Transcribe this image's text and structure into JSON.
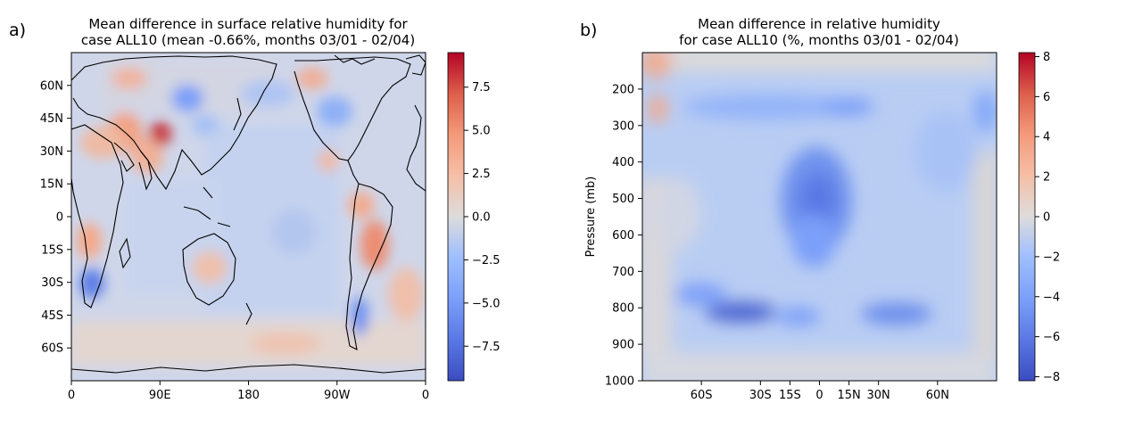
{
  "chart_data": [
    {
      "type": "heatmap",
      "panel_label": "a)",
      "title": [
        "Mean difference in surface relative humidity for",
        "case ALL10 (mean -0.66%, months 03/01 - 02/04)"
      ],
      "xlabel": "",
      "ylabel": "",
      "x_ticks": [
        "0",
        "90E",
        "180",
        "90W",
        "0"
      ],
      "y_ticks": [
        "60N",
        "45N",
        "30N",
        "15N",
        "0",
        "15S",
        "30S",
        "45S",
        "60S"
      ],
      "y_tick_values": [
        60,
        45,
        30,
        15,
        0,
        -15,
        -30,
        -45,
        -60
      ],
      "xlim": [
        0,
        360
      ],
      "ylim": [
        -75,
        75
      ],
      "colormap": "coolwarm",
      "coastlines": true,
      "colorbar": {
        "range": [
          -9.5,
          9.5
        ],
        "tick_values": [
          7.5,
          5.0,
          2.5,
          0.0,
          -2.5,
          -5.0,
          -7.5
        ],
        "tick_labels": [
          "7.5",
          "5.0",
          "2.5",
          "0.0",
          "−2.5",
          "−5.0",
          "−7.5"
        ]
      },
      "features": [
        {
          "lon": 50,
          "lat": 30,
          "value": 9.0
        },
        {
          "lon": 35,
          "lat": 40,
          "value": 3.5
        },
        {
          "lon": 75,
          "lat": 40,
          "value": 4.0
        },
        {
          "lon": 100,
          "lat": 50,
          "value": -5.0
        },
        {
          "lon": 20,
          "lat": -30,
          "value": -6.5
        },
        {
          "lon": 265,
          "lat": 45,
          "value": -4.5
        },
        {
          "lon": 290,
          "lat": -15,
          "value": 4.0
        },
        {
          "lon": 295,
          "lat": -40,
          "value": -5.0
        },
        {
          "lon": 20,
          "lat": -10,
          "value": 3.0
        },
        {
          "lon": 240,
          "lat": -60,
          "value": 2.0
        }
      ]
    },
    {
      "type": "heatmap",
      "panel_label": "b)",
      "title": [
        "Mean difference in relative humidity",
        "for case ALL10 (%, months 03/01 - 02/04)"
      ],
      "xlabel": "",
      "ylabel": "Pressure (mb)",
      "x_ticks": [
        "60S",
        "30S",
        "15S",
        "0",
        "15N",
        "30N",
        "60N"
      ],
      "x_tick_values": [
        -60,
        -30,
        -15,
        0,
        15,
        30,
        60
      ],
      "y_ticks": [
        "200",
        "300",
        "400",
        "500",
        "600",
        "700",
        "800",
        "900",
        "1000"
      ],
      "y_tick_values": [
        200,
        300,
        400,
        500,
        600,
        700,
        800,
        900,
        1000
      ],
      "xlim": [
        -90,
        90
      ],
      "ylim": [
        1000,
        100
      ],
      "colormap": "coolwarm",
      "colorbar": {
        "range": [
          -8.2,
          8.2
        ],
        "tick_values": [
          8,
          6,
          4,
          2,
          0,
          -2,
          -4,
          -6,
          -8
        ],
        "tick_labels": [
          "8",
          "6",
          "4",
          "2",
          "0",
          "−2",
          "−4",
          "−6",
          "−8"
        ]
      },
      "features": [
        {
          "lat": -30,
          "pressure": 810,
          "value": -7.5
        },
        {
          "lat": -20,
          "pressure": 815,
          "value": -6.0
        },
        {
          "lat": 0,
          "pressure": 500,
          "value": -5.5
        },
        {
          "lat": 0,
          "pressure": 400,
          "value": -4.5
        },
        {
          "lat": 30,
          "pressure": 815,
          "value": -5.0
        },
        {
          "lat": -15,
          "pressure": 250,
          "value": -4.5
        },
        {
          "lat": 80,
          "pressure": 280,
          "value": -4.0
        },
        {
          "lat": -85,
          "pressure": 260,
          "value": 2.5
        },
        {
          "lat": -88,
          "pressure": 120,
          "value": 2.0
        }
      ]
    }
  ]
}
